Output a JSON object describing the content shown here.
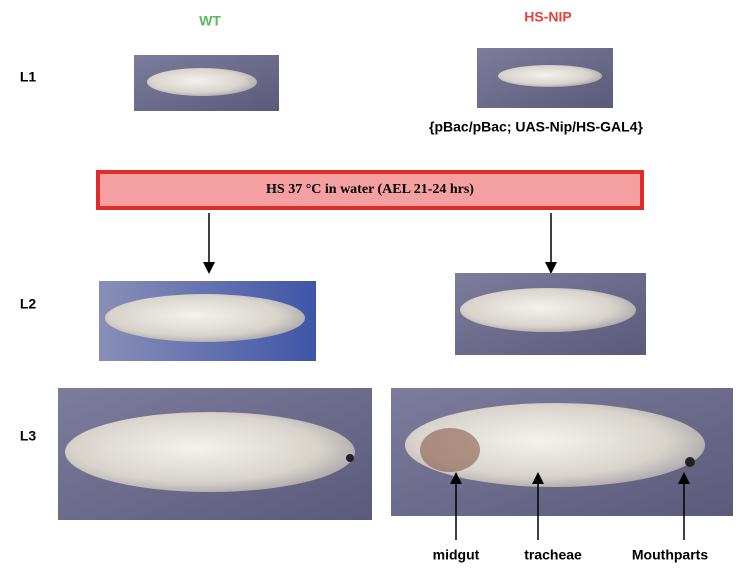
{
  "header": {
    "left": "WT",
    "right": "HS-NIP"
  },
  "rows": {
    "l1": "L1",
    "l2": "L2",
    "l3": "L3"
  },
  "genotype": "{pBac/pBac; UAS-Nip/HS-GAL4}",
  "treatment": "HS 37 °C in water (AEL 21-24 hrs)",
  "annotations": {
    "midgut": "midgut",
    "tracheae": "tracheae",
    "mouthparts": "Mouthparts"
  }
}
